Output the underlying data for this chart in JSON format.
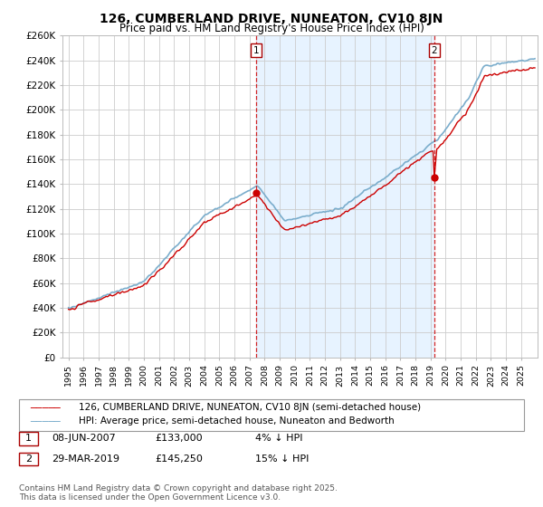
{
  "title": "126, CUMBERLAND DRIVE, NUNEATON, CV10 8JN",
  "subtitle": "Price paid vs. HM Land Registry's House Price Index (HPI)",
  "ylim": [
    0,
    260000
  ],
  "yticks": [
    0,
    20000,
    40000,
    60000,
    80000,
    100000,
    120000,
    140000,
    160000,
    180000,
    200000,
    220000,
    240000,
    260000
  ],
  "ytick_labels": [
    "£0",
    "£20K",
    "£40K",
    "£60K",
    "£80K",
    "£100K",
    "£120K",
    "£140K",
    "£160K",
    "£180K",
    "£200K",
    "£220K",
    "£240K",
    "£260K"
  ],
  "sale1_date": 2007.44,
  "sale1_price": 133000,
  "sale2_date": 2019.24,
  "sale2_price": 145250,
  "sale1_info_col1": "08-JUN-2007",
  "sale1_info_col2": "£133,000",
  "sale1_info_col3": "4% ↓ HPI",
  "sale2_info_col1": "29-MAR-2019",
  "sale2_info_col2": "£145,250",
  "sale2_info_col3": "15% ↓ HPI",
  "line_red_color": "#cc0000",
  "line_blue_color": "#7aadcc",
  "shade_color": "#ddeeff",
  "vline_color": "#cc0000",
  "grid_color": "#cccccc",
  "background_color": "#ffffff",
  "legend_label_red": "126, CUMBERLAND DRIVE, NUNEATON, CV10 8JN (semi-detached house)",
  "legend_label_blue": "HPI: Average price, semi-detached house, Nuneaton and Bedworth",
  "footnote": "Contains HM Land Registry data © Crown copyright and database right 2025.\nThis data is licensed under the Open Government Licence v3.0.",
  "title_fontsize": 10,
  "subtitle_fontsize": 8.5,
  "tick_fontsize": 7.5,
  "legend_fontsize": 7.5,
  "footnote_fontsize": 6.5
}
